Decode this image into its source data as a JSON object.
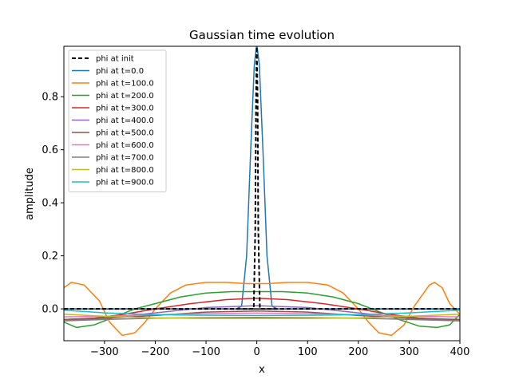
{
  "chart_data": {
    "type": "line",
    "title": "Gaussian time evolution",
    "xlabel": "x",
    "ylabel": "amplitude",
    "xlim": [
      -380,
      400
    ],
    "ylim": [
      -0.12,
      0.99
    ],
    "xticks": [
      -300,
      -200,
      -100,
      0,
      100,
      200,
      300,
      400
    ],
    "yticks": [
      0.0,
      0.2,
      0.4,
      0.6,
      0.8
    ],
    "xtick_labels": [
      "−300",
      "−200",
      "−100",
      "0",
      "100",
      "200",
      "300",
      "400"
    ],
    "ytick_labels": [
      "0.0",
      "0.2",
      "0.4",
      "0.6",
      "0.8"
    ],
    "grid": false,
    "legend_position": "top-left",
    "baseline": 0.0,
    "series": [
      {
        "name": "phi at init",
        "color": "#000000",
        "dash": true,
        "x": [
          -380,
          -6,
          -3,
          -1.5,
          0,
          1.5,
          3,
          6,
          400
        ],
        "y": [
          0.0,
          0.0,
          0.3,
          0.8,
          1.0,
          0.8,
          0.3,
          0.0,
          0.0
        ]
      },
      {
        "name": "phi at t=0.0",
        "color": "#1f77b4",
        "x": [
          -380,
          -40,
          -30,
          -20,
          -12,
          -5,
          0,
          5,
          12,
          20,
          30,
          40,
          400
        ],
        "y": [
          0.0,
          0.0,
          0.01,
          0.2,
          0.6,
          0.92,
          1.0,
          0.92,
          0.6,
          0.2,
          0.01,
          0.0,
          0.0
        ]
      },
      {
        "name": "phi at t=100.0",
        "color": "#ff7f0e",
        "x": [
          -380,
          -365,
          -340,
          -310,
          -290,
          -265,
          -240,
          -220,
          -200,
          -170,
          -140,
          -100,
          -60,
          -20,
          0,
          20,
          60,
          100,
          140,
          170,
          200,
          220,
          240,
          265,
          290,
          310,
          340,
          350,
          365,
          380,
          400
        ],
        "y": [
          0.08,
          0.1,
          0.09,
          0.03,
          -0.05,
          -0.1,
          -0.09,
          -0.05,
          0.0,
          0.06,
          0.09,
          0.1,
          0.1,
          0.095,
          0.095,
          0.095,
          0.1,
          0.1,
          0.09,
          0.06,
          0.0,
          -0.05,
          -0.09,
          -0.1,
          -0.06,
          0.01,
          0.09,
          0.1,
          0.08,
          0.02,
          -0.02
        ]
      },
      {
        "name": "phi at t=200.0",
        "color": "#2ca02c",
        "x": [
          -380,
          -355,
          -320,
          -280,
          -240,
          -200,
          -150,
          -100,
          -50,
          0,
          50,
          100,
          150,
          200,
          240,
          280,
          320,
          355,
          380,
          400
        ],
        "y": [
          -0.05,
          -0.07,
          -0.06,
          -0.03,
          0.0,
          0.02,
          0.045,
          0.06,
          0.065,
          0.065,
          0.065,
          0.06,
          0.045,
          0.02,
          -0.01,
          -0.04,
          -0.065,
          -0.07,
          -0.06,
          -0.02
        ]
      },
      {
        "name": "phi at t=300.0",
        "color": "#d62728",
        "x": [
          -380,
          -320,
          -260,
          -200,
          -130,
          -60,
          0,
          60,
          130,
          200,
          260,
          320,
          380,
          400
        ],
        "y": [
          -0.04,
          -0.035,
          -0.02,
          0.0,
          0.02,
          0.035,
          0.04,
          0.035,
          0.02,
          0.0,
          -0.02,
          -0.035,
          -0.04,
          -0.04
        ]
      },
      {
        "name": "phi at t=400.0",
        "color": "#9467bd",
        "x": [
          -380,
          -300,
          -200,
          -100,
          0,
          100,
          200,
          300,
          400
        ],
        "y": [
          -0.045,
          -0.035,
          -0.015,
          0.005,
          0.012,
          0.005,
          -0.015,
          -0.035,
          -0.045
        ]
      },
      {
        "name": "phi at t=500.0",
        "color": "#8c564b",
        "x": [
          -380,
          -300,
          -200,
          -100,
          0,
          100,
          200,
          300,
          400
        ],
        "y": [
          -0.04,
          -0.035,
          -0.025,
          -0.012,
          -0.008,
          -0.012,
          -0.025,
          -0.035,
          -0.04
        ]
      },
      {
        "name": "phi at t=600.0",
        "color": "#e377c2",
        "x": [
          -380,
          -300,
          -200,
          -100,
          0,
          100,
          200,
          300,
          400
        ],
        "y": [
          -0.03,
          -0.028,
          -0.022,
          -0.018,
          -0.016,
          -0.018,
          -0.022,
          -0.028,
          -0.03
        ]
      },
      {
        "name": "phi at t=700.0",
        "color": "#7f7f7f",
        "x": [
          -380,
          -300,
          -200,
          -100,
          0,
          100,
          200,
          300,
          400
        ],
        "y": [
          -0.045,
          -0.04,
          -0.035,
          -0.033,
          -0.032,
          -0.033,
          -0.035,
          -0.04,
          -0.045
        ]
      },
      {
        "name": "phi at t=800.0",
        "color": "#bcbd22",
        "x": [
          -380,
          -300,
          -200,
          -100,
          0,
          100,
          200,
          300,
          400
        ],
        "y": [
          -0.02,
          -0.028,
          -0.034,
          -0.036,
          -0.036,
          -0.036,
          -0.034,
          -0.028,
          -0.02
        ]
      },
      {
        "name": "phi at t=900.0",
        "color": "#17becf",
        "x": [
          -380,
          -300,
          -200,
          -100,
          0,
          100,
          200,
          300,
          400
        ],
        "y": [
          -0.005,
          -0.015,
          -0.022,
          -0.024,
          -0.025,
          -0.024,
          -0.022,
          -0.015,
          -0.005
        ]
      }
    ]
  }
}
